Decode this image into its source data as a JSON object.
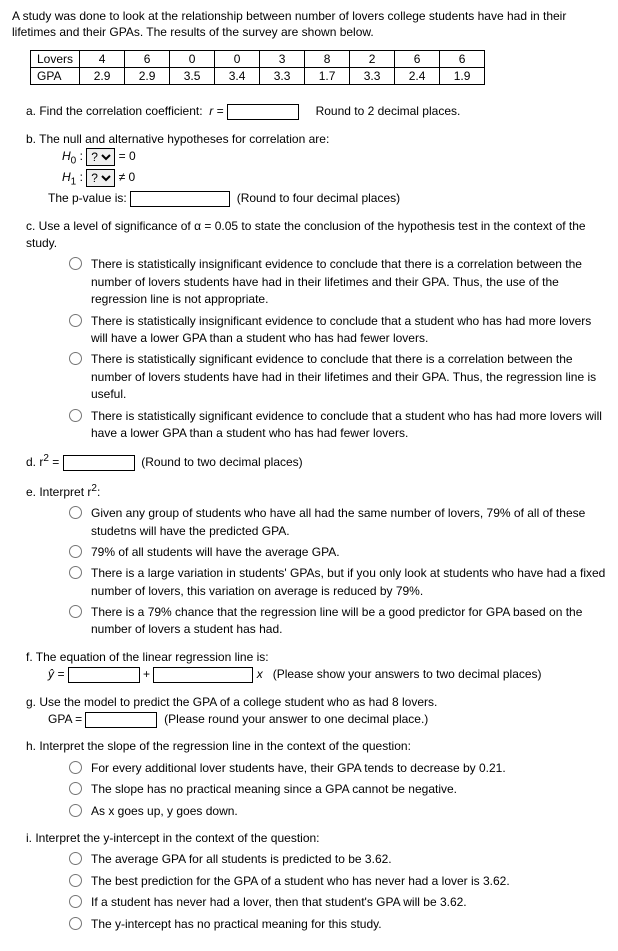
{
  "intro": "A study was done to look at the relationship between number of lovers college students have had in their lifetimes and their GPAs. The results of the survey are shown below.",
  "table": {
    "row1_label": "Lovers",
    "row1": [
      "4",
      "6",
      "0",
      "0",
      "3",
      "8",
      "2",
      "6",
      "6"
    ],
    "row2_label": "GPA",
    "row2": [
      "2.9",
      "2.9",
      "3.5",
      "3.4",
      "3.3",
      "1.7",
      "3.3",
      "2.4",
      "1.9"
    ]
  },
  "a": {
    "label": "a. Find the correlation coefficient:",
    "r_eq": "r =",
    "round": "Round to 2 decimal places."
  },
  "b": {
    "label": "b. The null and alternative hypotheses for correlation are:",
    "h0_pre": "H",
    "h0_sub": "0",
    "h1_pre": "H",
    "h1_sub": "1",
    "colon": ":",
    "eq0": "= 0",
    "ne0": "≠ 0",
    "select_val": "?",
    "pval_label": "The p-value is:",
    "pval_round": "(Round to four decimal places)"
  },
  "c": {
    "label": "c. Use a level of significance of α = 0.05 to state the conclusion of the hypothesis test in the context of the study.",
    "opts": [
      "There is statistically insignificant evidence to conclude that there is a correlation between the number of lovers students have had in their lifetimes and their GPA. Thus, the use of the regression line is not appropriate.",
      "There is statistically insignificant evidence to conclude that a student who has had more lovers will have a lower GPA than a student who has had fewer lovers.",
      "There is statistically significant evidence to conclude that there is a correlation between the number of lovers students have had in their lifetimes and their GPA. Thus, the regression line is useful.",
      "There is statistically significant evidence to conclude that a student who has had more lovers will have a lower GPA than a student who has had fewer lovers."
    ]
  },
  "d": {
    "label_pre": "d.  r",
    "sup": "2",
    "eq": " =",
    "round": "(Round to two decimal places)"
  },
  "e": {
    "label_pre": "e.  Interpret r",
    "sup": "2",
    "colon": ":",
    "opts": [
      "Given any group of students who have all had the same number of lovers, 79% of all of these studetns will have the predicted GPA.",
      "79% of all students will have the average GPA.",
      "There is a large variation in students' GPAs, but if you only look at students who have had a fixed number of lovers, this variation on average is reduced by 79%.",
      "There is a 79% chance that the regression line will be a good predictor for GPA based on the number of lovers a student has had."
    ]
  },
  "f": {
    "label": "f. The equation of the linear regression line is:",
    "yhat": "ŷ =",
    "plus": "+",
    "x": "x",
    "hint": "(Please show your answers to two decimal places)"
  },
  "g": {
    "label": "g. Use the model to predict the GPA of a college student who as had 8 lovers.",
    "gpa_eq": "GPA =",
    "hint": "(Please round your answer to one decimal place.)"
  },
  "h": {
    "label": "h. Interpret the slope of the regression line in the context of the question:",
    "opts": [
      "For every additional lover students have, their GPA tends to decrease by 0.21.",
      "The slope has no practical meaning since a GPA cannot be negative.",
      "As x goes up, y goes down."
    ]
  },
  "i": {
    "label": "i. Interpret the y-intercept in the context of the question:",
    "opts": [
      "The average GPA for all students is predicted to be 3.62.",
      "The best prediction for the GPA of a student who has never had a lover is 3.62.",
      "If a student has never had a lover, then that student's GPA will be 3.62.",
      "The y-intercept has no practical meaning for this study."
    ]
  }
}
